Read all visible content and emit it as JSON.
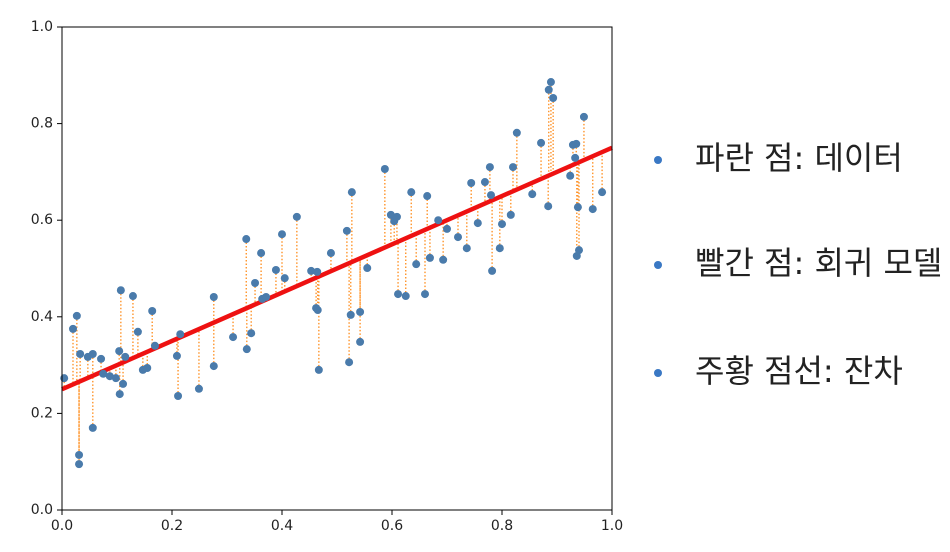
{
  "chart_data": {
    "type": "scatter",
    "x": [
      0.004,
      0.02,
      0.027,
      0.033,
      0.031,
      0.031,
      0.047,
      0.056,
      0.056,
      0.071,
      0.075,
      0.087,
      0.098,
      0.104,
      0.105,
      0.107,
      0.111,
      0.115,
      0.129,
      0.138,
      0.147,
      0.155,
      0.164,
      0.169,
      0.209,
      0.211,
      0.215,
      0.249,
      0.276,
      0.276,
      0.311,
      0.335,
      0.336,
      0.344,
      0.351,
      0.362,
      0.364,
      0.371,
      0.389,
      0.4,
      0.405,
      0.427,
      0.453,
      0.462,
      0.464,
      0.465,
      0.467,
      0.489,
      0.518,
      0.522,
      0.525,
      0.527,
      0.542,
      0.542,
      0.555,
      0.587,
      0.598,
      0.604,
      0.609,
      0.611,
      0.625,
      0.635,
      0.644,
      0.66,
      0.664,
      0.669,
      0.684,
      0.693,
      0.7,
      0.72,
      0.736,
      0.744,
      0.756,
      0.769,
      0.778,
      0.78,
      0.782,
      0.796,
      0.8,
      0.816,
      0.82,
      0.827,
      0.855,
      0.871,
      0.884,
      0.885,
      0.889,
      0.893,
      0.924,
      0.929,
      0.933,
      0.935,
      0.936,
      0.94,
      0.938,
      0.949,
      0.965,
      0.982
    ],
    "y": [
      0.273,
      0.375,
      0.402,
      0.323,
      0.114,
      0.095,
      0.317,
      0.323,
      0.17,
      0.313,
      0.282,
      0.277,
      0.273,
      0.329,
      0.24,
      0.455,
      0.261,
      0.317,
      0.443,
      0.369,
      0.29,
      0.294,
      0.412,
      0.34,
      0.319,
      0.236,
      0.364,
      0.251,
      0.441,
      0.298,
      0.358,
      0.561,
      0.333,
      0.366,
      0.47,
      0.532,
      0.437,
      0.441,
      0.497,
      0.571,
      0.48,
      0.607,
      0.495,
      0.418,
      0.493,
      0.414,
      0.29,
      0.532,
      0.578,
      0.306,
      0.404,
      0.658,
      0.41,
      0.348,
      0.501,
      0.706,
      0.611,
      0.598,
      0.607,
      0.447,
      0.443,
      0.658,
      0.509,
      0.447,
      0.65,
      0.522,
      0.6,
      0.518,
      0.582,
      0.565,
      0.542,
      0.677,
      0.594,
      0.679,
      0.71,
      0.652,
      0.495,
      0.542,
      0.592,
      0.611,
      0.71,
      0.781,
      0.654,
      0.76,
      0.629,
      0.87,
      0.886,
      0.853,
      0.692,
      0.756,
      0.729,
      0.758,
      0.526,
      0.538,
      0.627,
      0.814,
      0.623,
      0.658
    ],
    "color": "#4a7bab",
    "fit": {
      "x": [
        0,
        1
      ],
      "y": [
        0.25,
        0.75
      ],
      "color": "#ee1111"
    },
    "residual_color": "#ff8c1a",
    "xlim": [
      0,
      1
    ],
    "ylim": [
      0,
      1
    ],
    "xticks": [
      {
        "value": 0,
        "label": "0.0"
      },
      0.2,
      0.4,
      0.6,
      0.8,
      {
        "value": 1,
        "label": "1.0"
      }
    ],
    "yticks": [
      {
        "value": 0,
        "label": "0.0"
      },
      0.2,
      0.4,
      0.6,
      0.8,
      {
        "value": 1,
        "label": "1.0"
      }
    ],
    "grid": false
  },
  "notes": [
    "파란 점: 데이터",
    "빨간 점: 회귀 모델",
    "주황 점선: 잔차"
  ]
}
